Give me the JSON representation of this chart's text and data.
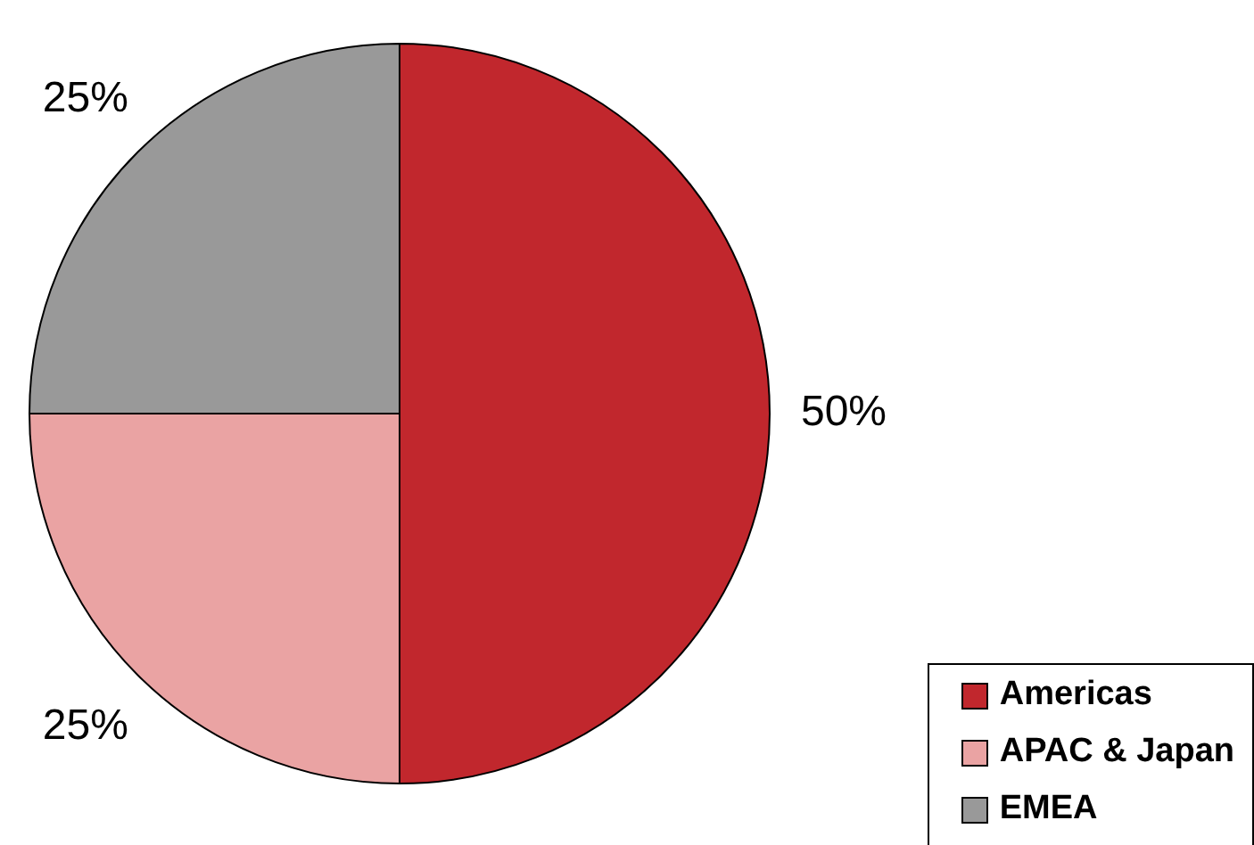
{
  "chart_data": {
    "type": "pie",
    "categories": [
      "Americas",
      "APAC & Japan",
      "EMEA"
    ],
    "values": [
      50,
      25,
      25
    ],
    "colors": [
      "#c1272d",
      "#eaa3a3",
      "#999999"
    ],
    "value_labels": [
      "50%",
      "25%",
      "25%"
    ],
    "legend": "bottom right"
  }
}
